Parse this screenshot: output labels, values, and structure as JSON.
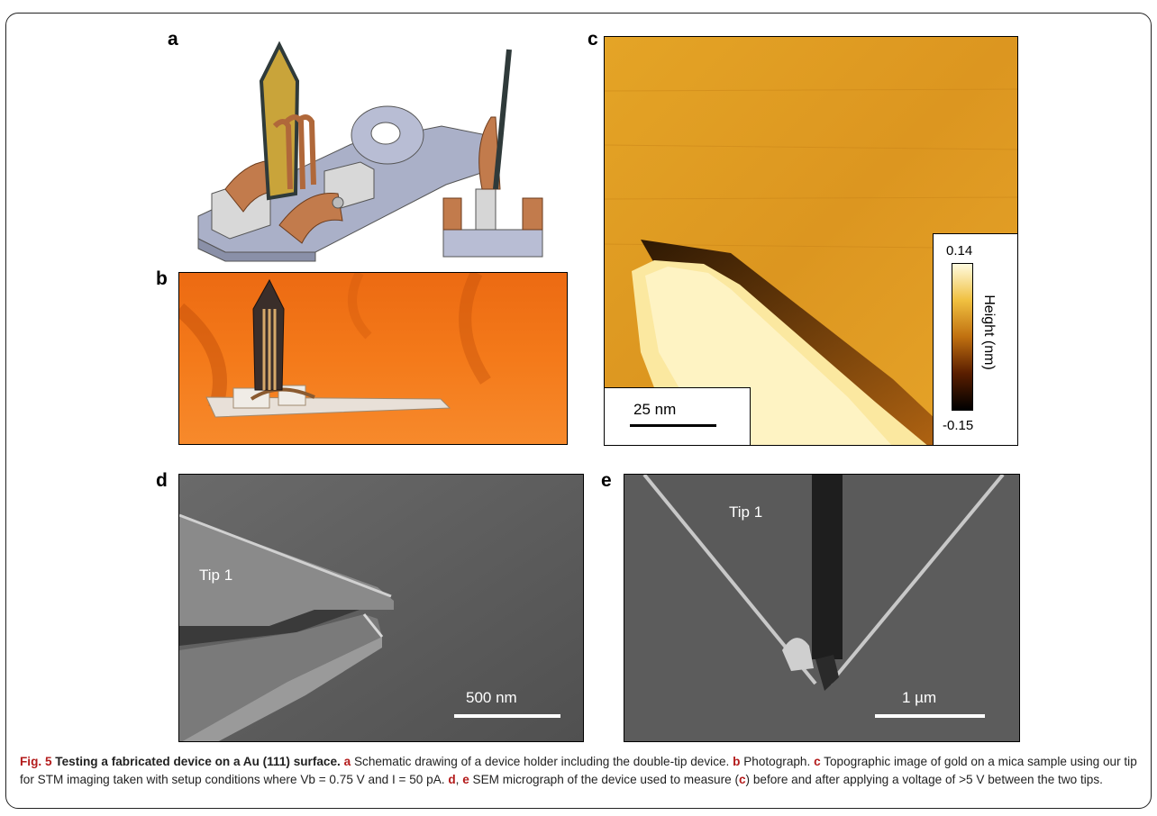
{
  "figure": {
    "panels": {
      "a": {
        "letter": "a"
      },
      "b": {
        "letter": "b"
      },
      "c": {
        "letter": "c",
        "scale_bar": "25 nm",
        "colorbar": {
          "max": "0.14",
          "min": "-0.15",
          "title": "Height (nm)"
        }
      },
      "d": {
        "letter": "d",
        "scale_bar": "500 nm",
        "tip_label": "Tip 1"
      },
      "e": {
        "letter": "e",
        "scale_bar": "1 µm",
        "tip_label": "Tip 1"
      }
    },
    "caption": {
      "fig_label": "Fig. 5",
      "title": "Testing a fabricated device on a Au (111) surface.",
      "a_letter": "a",
      "a_text": "Schematic drawing of a device holder including the double-tip device.",
      "b_letter": "b",
      "b_text": "Photograph.",
      "c_letter": "c",
      "c_text_1": "Topographic image of gold on a mica sample using our tip for STM imaging taken with setup conditions where",
      "c_vb": "Vb = 0.75 V and I = 50 pA.",
      "de_letter_d": "d",
      "de_sep": ",",
      "de_letter_e": "e",
      "de_text_1": "SEM micrograph of the device used to measure (",
      "de_ref": "c",
      "de_text_2": ") before and after applying a voltage of >5 V between the two tips."
    }
  }
}
